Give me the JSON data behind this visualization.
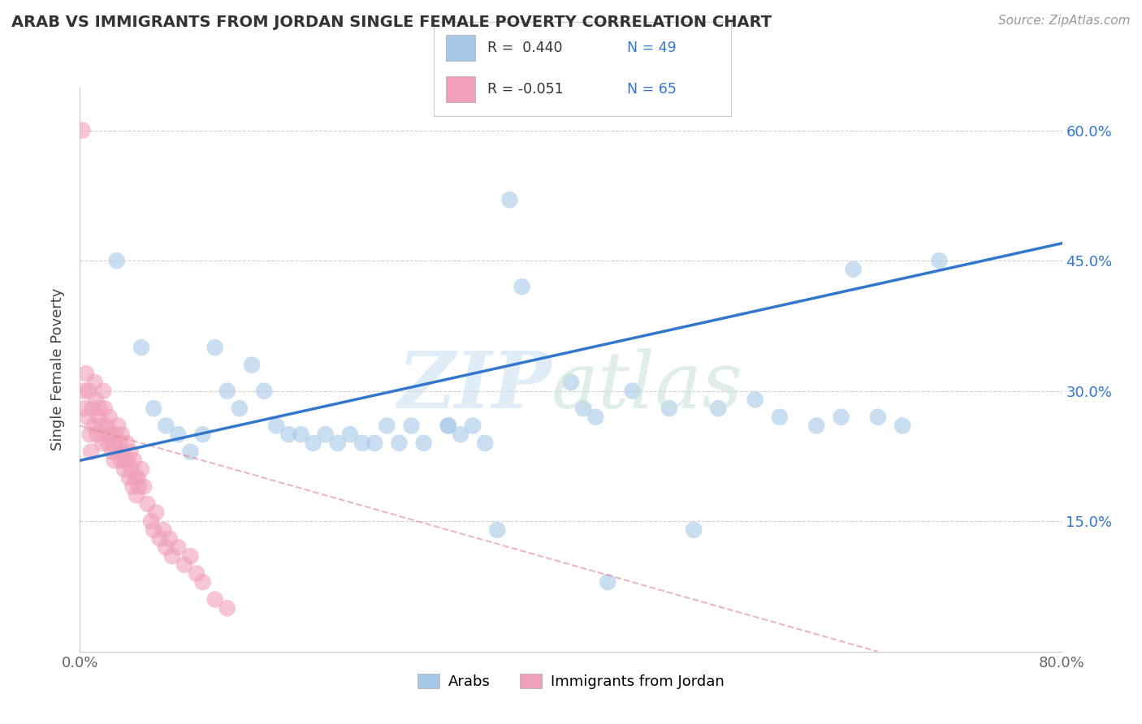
{
  "title": "ARAB VS IMMIGRANTS FROM JORDAN SINGLE FEMALE POVERTY CORRELATION CHART",
  "source": "Source: ZipAtlas.com",
  "ylabel": "Single Female Poverty",
  "xlim": [
    0.0,
    0.8
  ],
  "ylim": [
    0.0,
    0.65
  ],
  "xtick_pos": [
    0.0,
    0.1,
    0.2,
    0.3,
    0.4,
    0.5,
    0.6,
    0.7,
    0.8
  ],
  "xticklabels": [
    "0.0%",
    "",
    "",
    "",
    "",
    "",
    "",
    "",
    "80.0%"
  ],
  "ytick_positions": [
    0.15,
    0.3,
    0.45,
    0.6
  ],
  "ytick_labels": [
    "15.0%",
    "30.0%",
    "45.0%",
    "60.0%"
  ],
  "arab_color": "#a8c8e8",
  "jordan_color": "#f0a0b8",
  "arab_line_color": "#3377cc",
  "jordan_line_color": "#e08898",
  "watermark_zip_color": "#c8ddf0",
  "watermark_atlas_color": "#c8e0d8",
  "background_color": "#ffffff",
  "grid_color": "#cccccc",
  "arab_x": [
    0.03,
    0.05,
    0.06,
    0.07,
    0.08,
    0.09,
    0.1,
    0.11,
    0.12,
    0.13,
    0.14,
    0.15,
    0.16,
    0.17,
    0.18,
    0.19,
    0.2,
    0.21,
    0.22,
    0.23,
    0.24,
    0.25,
    0.26,
    0.27,
    0.28,
    0.3,
    0.3,
    0.31,
    0.32,
    0.33,
    0.34,
    0.35,
    0.36,
    0.4,
    0.41,
    0.42,
    0.43,
    0.45,
    0.48,
    0.5,
    0.52,
    0.55,
    0.57,
    0.6,
    0.62,
    0.63,
    0.65,
    0.67,
    0.7
  ],
  "arab_y": [
    0.45,
    0.35,
    0.28,
    0.26,
    0.25,
    0.23,
    0.25,
    0.35,
    0.3,
    0.28,
    0.33,
    0.3,
    0.26,
    0.25,
    0.25,
    0.24,
    0.25,
    0.24,
    0.25,
    0.24,
    0.24,
    0.26,
    0.24,
    0.26,
    0.24,
    0.26,
    0.26,
    0.25,
    0.26,
    0.24,
    0.14,
    0.52,
    0.42,
    0.31,
    0.28,
    0.27,
    0.08,
    0.3,
    0.28,
    0.14,
    0.28,
    0.29,
    0.27,
    0.26,
    0.27,
    0.44,
    0.27,
    0.26,
    0.45
  ],
  "arab_line_x": [
    0.0,
    0.8
  ],
  "arab_line_y": [
    0.22,
    0.47
  ],
  "jordan_line_x": [
    0.0,
    0.65
  ],
  "jordan_line_y": [
    0.26,
    0.0
  ],
  "jordan_x": [
    0.002,
    0.003,
    0.004,
    0.005,
    0.006,
    0.007,
    0.008,
    0.009,
    0.01,
    0.011,
    0.012,
    0.013,
    0.014,
    0.015,
    0.016,
    0.017,
    0.018,
    0.019,
    0.02,
    0.021,
    0.022,
    0.023,
    0.024,
    0.025,
    0.026,
    0.027,
    0.028,
    0.029,
    0.03,
    0.031,
    0.032,
    0.033,
    0.034,
    0.035,
    0.036,
    0.037,
    0.038,
    0.039,
    0.04,
    0.041,
    0.042,
    0.043,
    0.044,
    0.045,
    0.046,
    0.047,
    0.048,
    0.05,
    0.052,
    0.055,
    0.058,
    0.06,
    0.062,
    0.065,
    0.068,
    0.07,
    0.073,
    0.075,
    0.08,
    0.085,
    0.09,
    0.095,
    0.1,
    0.11,
    0.12
  ],
  "jordan_y": [
    0.6,
    0.3,
    0.28,
    0.32,
    0.27,
    0.3,
    0.25,
    0.23,
    0.28,
    0.26,
    0.31,
    0.29,
    0.25,
    0.27,
    0.28,
    0.26,
    0.24,
    0.3,
    0.28,
    0.25,
    0.26,
    0.24,
    0.27,
    0.25,
    0.23,
    0.24,
    0.22,
    0.25,
    0.23,
    0.26,
    0.24,
    0.22,
    0.25,
    0.23,
    0.21,
    0.22,
    0.24,
    0.22,
    0.2,
    0.23,
    0.21,
    0.19,
    0.22,
    0.2,
    0.18,
    0.2,
    0.19,
    0.21,
    0.19,
    0.17,
    0.15,
    0.14,
    0.16,
    0.13,
    0.14,
    0.12,
    0.13,
    0.11,
    0.12,
    0.1,
    0.11,
    0.09,
    0.08,
    0.06,
    0.05
  ]
}
